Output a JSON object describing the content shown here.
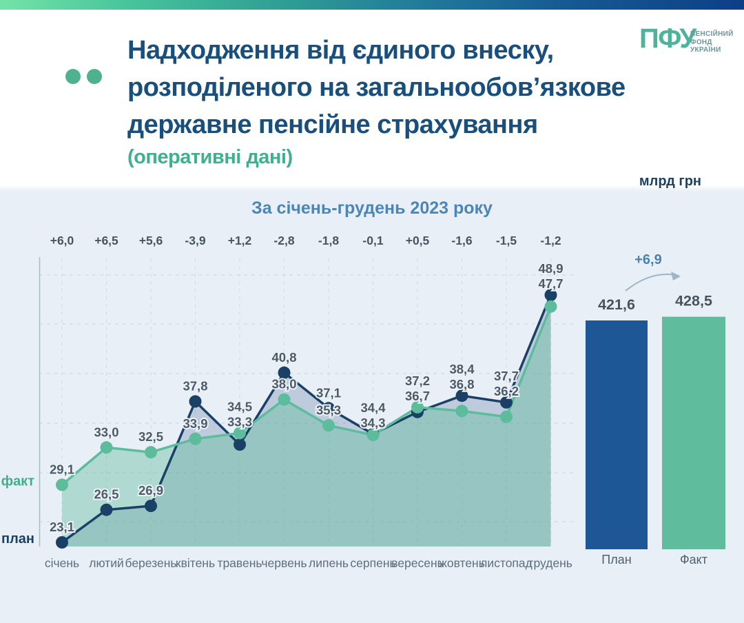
{
  "header": {
    "title_lines": [
      "Надходження від єдиного внеску,",
      "розподіленого на загальнообов’язкове",
      "державне пенсійне страхування"
    ],
    "subtitle": "(оперативні дані)",
    "unit": "млрд грн",
    "logo": {
      "abbr": "ПФУ",
      "tagline_lines": [
        "ПЕНСІЙНИЙ",
        "ФОНД",
        "УКРАЇНИ"
      ]
    }
  },
  "colors": {
    "accent_teal": "#4fb28e",
    "title_navy": "#184f7c",
    "steel_blue": "#4b86b7",
    "plan_line": "#1b4065",
    "fact_line": "#5cbc9c",
    "plan_bar": "#1d5795",
    "fact_bar": "#5fbd9d",
    "label_gray": "#4e5a66"
  },
  "chart_data": {
    "type": "line",
    "title": "За січень-грудень 2023 року",
    "unit": "млрд грн",
    "grid": true,
    "legend_position": "left",
    "categories": [
      "січень",
      "лютий",
      "березень",
      "квітень",
      "травень",
      "червень",
      "липень",
      "серпень",
      "вересень",
      "жовтень",
      "листопад",
      "грудень"
    ],
    "series": [
      {
        "name": "план",
        "label": "План",
        "color": "#1b4065",
        "bar_color": "#1d5795",
        "values": [
          23.1,
          26.5,
          26.9,
          37.8,
          33.3,
          40.8,
          37.1,
          34.4,
          36.7,
          38.4,
          37.7,
          48.9
        ],
        "total": 421.6
      },
      {
        "name": "факт",
        "label": "Факт",
        "color": "#5cbc9c",
        "bar_color": "#5fbd9d",
        "values": [
          29.1,
          33.0,
          32.5,
          33.9,
          34.5,
          38.0,
          35.3,
          34.3,
          37.2,
          36.8,
          36.2,
          47.7
        ],
        "total": 428.5
      }
    ],
    "deltas": [
      "+6,0",
      "+6,5",
      "+5,6",
      "-3,9",
      "+1,2",
      "-2,8",
      "-1,8",
      "-0,1",
      "+0,5",
      "-1,6",
      "-1,5",
      "-1,2"
    ],
    "total_delta": "+6,9"
  }
}
